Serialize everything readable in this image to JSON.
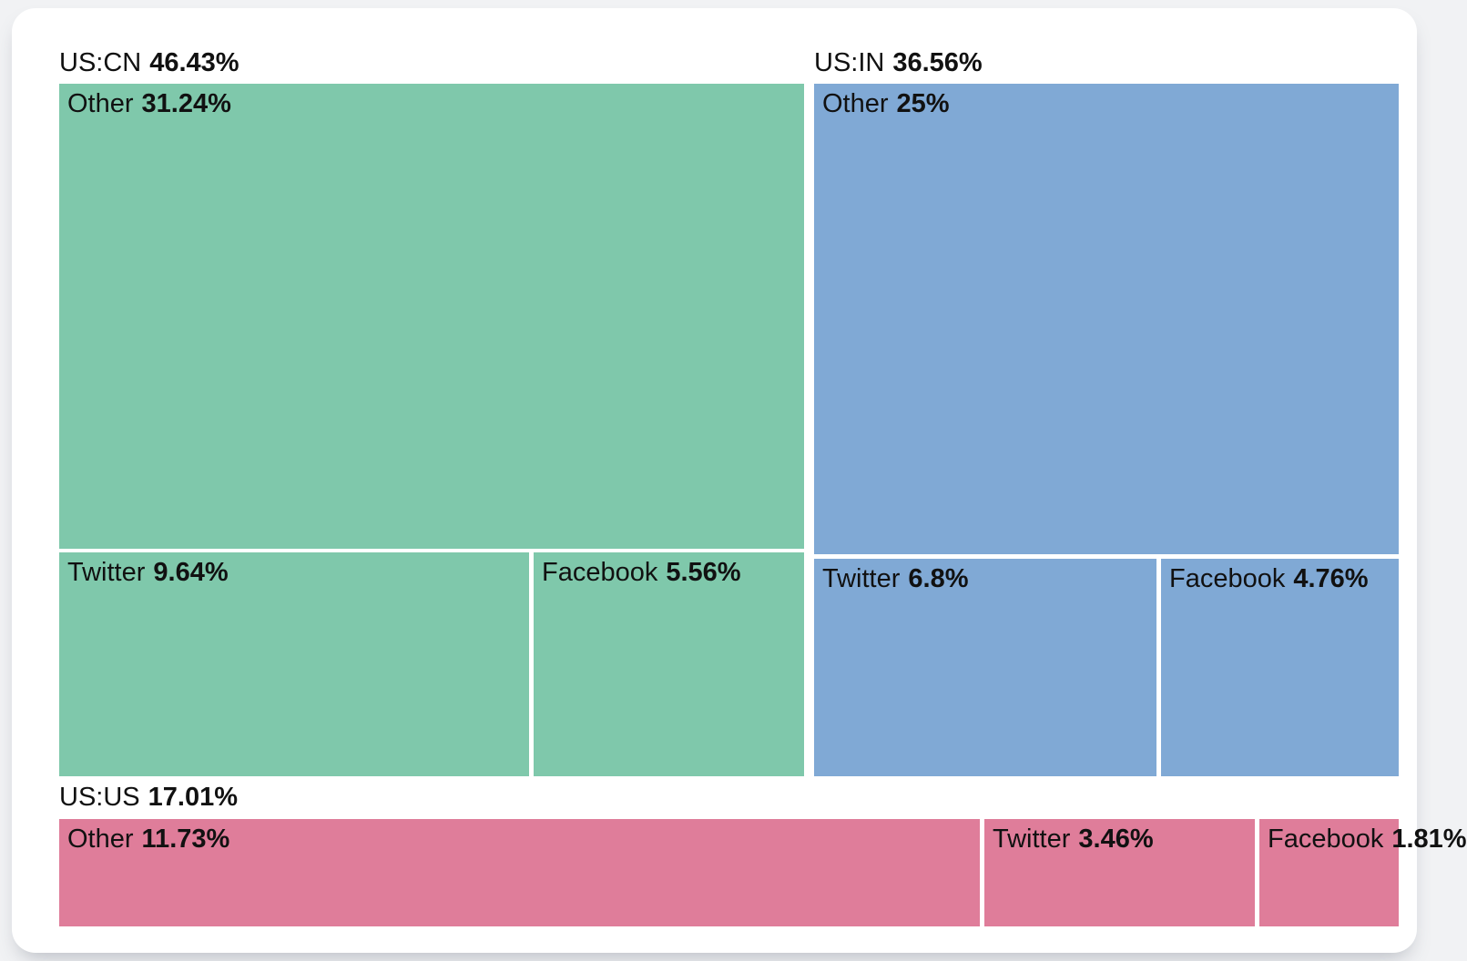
{
  "page": {
    "background": "#F1F2F4",
    "card_background": "#FFFFFF",
    "text_color": "#111111"
  },
  "chart_data": {
    "type": "treemap",
    "title": "",
    "unit": "%",
    "legend_position": "none",
    "groups": [
      {
        "label": "US:CN",
        "value": 46.43,
        "value_label": "46.43%",
        "color": "#7FC8AB",
        "children": [
          {
            "label": "Other",
            "value": 31.24,
            "value_label": "31.24%"
          },
          {
            "label": "Twitter",
            "value": 9.64,
            "value_label": "9.64%"
          },
          {
            "label": "Facebook",
            "value": 5.56,
            "value_label": "5.56%"
          }
        ]
      },
      {
        "label": "US:IN",
        "value": 36.56,
        "value_label": "36.56%",
        "color": "#80A9D5",
        "children": [
          {
            "label": "Other",
            "value": 25,
            "value_label": "25%"
          },
          {
            "label": "Twitter",
            "value": 6.8,
            "value_label": "6.8%"
          },
          {
            "label": "Facebook",
            "value": 4.76,
            "value_label": "4.76%"
          }
        ]
      },
      {
        "label": "US:US",
        "value": 17.01,
        "value_label": "17.01%",
        "color": "#DF7D9A",
        "children": [
          {
            "label": "Other",
            "value": 11.73,
            "value_label": "11.73%"
          },
          {
            "label": "Twitter",
            "value": 3.46,
            "value_label": "3.46%"
          },
          {
            "label": "Facebook",
            "value": 1.81,
            "value_label": "1.81%"
          }
        ]
      }
    ]
  }
}
